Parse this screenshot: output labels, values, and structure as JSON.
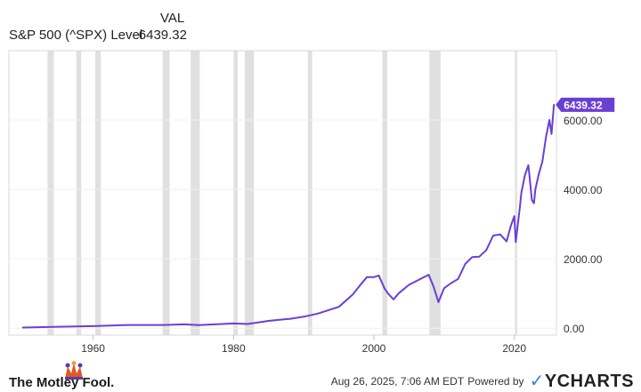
{
  "header": {
    "column_label": "VAL",
    "series_label": "S&P 500 (^SPX) Level",
    "series_value": "6439.32"
  },
  "footer": {
    "brand": "The Motley Fool.",
    "timestamp": "Aug 26, 2025, 7:06 AM EDT",
    "powered_by": "Powered by",
    "provider": "YCHARTS"
  },
  "colors": {
    "line": "#6b3fd4",
    "recession_band": "#e0e0e0",
    "badge": "#6b3fd4",
    "grid": "#f0f0f0"
  },
  "chart_data": {
    "type": "line",
    "title": "",
    "xlabel": "",
    "ylabel": "",
    "x_ticks": [
      "1960",
      "1980",
      "2000",
      "2020"
    ],
    "y_ticks": [
      "0.00",
      "2000.00",
      "4000.00",
      "6000.00"
    ],
    "xlim": [
      1948,
      2026
    ],
    "ylim": [
      -200,
      8000
    ],
    "last_value_label": "6439.32",
    "recessions": [
      [
        1953.5,
        1954.4
      ],
      [
        1957.6,
        1958.3
      ],
      [
        1960.3,
        1961.1
      ],
      [
        1969.9,
        1970.9
      ],
      [
        1973.9,
        1975.2
      ],
      [
        1980.0,
        1980.6
      ],
      [
        1981.6,
        1982.9
      ],
      [
        1990.6,
        1991.2
      ],
      [
        2001.2,
        2001.9
      ],
      [
        2007.9,
        2009.5
      ],
      [
        2020.1,
        2020.4
      ]
    ],
    "series": [
      {
        "name": "S&P 500 (^SPX) Level",
        "x": [
          1950,
          1955,
          1960,
          1965,
          1970,
          1973,
          1975,
          1980,
          1982,
          1985,
          1987,
          1988,
          1990,
          1992,
          1995,
          1997,
          1998,
          1999,
          2000,
          2000.7,
          2001.5,
          2002,
          2002.8,
          2003.5,
          2005,
          2007.8,
          2008.5,
          2009.2,
          2010,
          2011,
          2012,
          2013,
          2014,
          2015,
          2016,
          2017,
          2018,
          2018.9,
          2019.5,
          2020,
          2020.2,
          2020.8,
          2021,
          2021.5,
          2022,
          2022.5,
          2022.8,
          2023,
          2023.5,
          2024,
          2024.5,
          2025,
          2025.3,
          2025.65
        ],
        "values": [
          17,
          40,
          58,
          92,
          92,
          110,
          90,
          135,
          120,
          210,
          250,
          270,
          330,
          420,
          615,
          970,
          1230,
          1470,
          1470,
          1520,
          1150,
          1000,
          830,
          1000,
          1250,
          1540,
          1200,
          750,
          1150,
          1300,
          1420,
          1850,
          2050,
          2060,
          2250,
          2670,
          2700,
          2500,
          2950,
          3230,
          2480,
          3500,
          3900,
          4400,
          4700,
          3700,
          3600,
          4000,
          4450,
          4800,
          5500,
          6000,
          5600,
          6439.32
        ]
      }
    ]
  }
}
